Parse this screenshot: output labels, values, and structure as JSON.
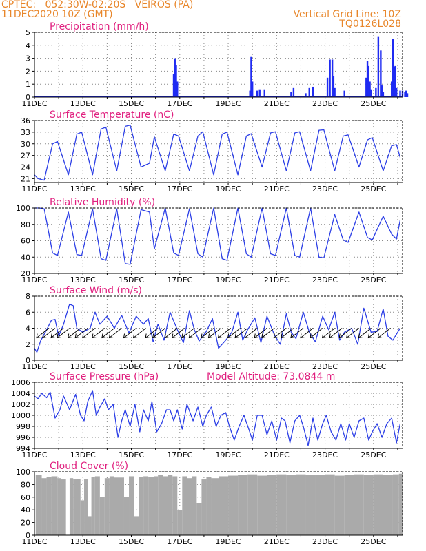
{
  "header": {
    "line1": "CPTEC:   052:30W-02:20S   VEIROS (PA)",
    "line2": "11DEC2020 10Z (GMT)",
    "grid_note": "Vertical Grid Line: 10Z",
    "model_code": "TQ0126L028",
    "color": "#e8862a"
  },
  "colors": {
    "title": "#e0207f",
    "line": "#2b3ee6",
    "bar": "#1f2bf2",
    "cloud": "#aaaaaa",
    "arrow": "#000000"
  },
  "x_labels": [
    "11DEC",
    "13DEC",
    "15DEC",
    "17DEC",
    "19DEC",
    "21DEC",
    "23DEC",
    "25DEC"
  ],
  "chart_data": [
    {
      "type": "bar",
      "title": "Precipitation (mm/h)",
      "ylim": [
        0,
        5
      ],
      "yticks": [
        "0",
        "1",
        "2",
        "3",
        "4",
        "5"
      ],
      "x_days": [
        5.75,
        5.8,
        5.85,
        5.9,
        8.9,
        8.95,
        9.0,
        9.2,
        9.3,
        9.5,
        10.6,
        10.7,
        11.2,
        11.35,
        11.5,
        12.1,
        12.2,
        12.3,
        12.35,
        12.4,
        12.8,
        13.7,
        13.75,
        13.8,
        13.85,
        13.9,
        14.1,
        14.2,
        14.3,
        14.35,
        14.4,
        14.75,
        14.8,
        14.85,
        14.9,
        14.95,
        15.1,
        15.2,
        15.3,
        15.35,
        15.4
      ],
      "values": [
        1.8,
        3.0,
        2.5,
        1.2,
        0.5,
        3.1,
        1.2,
        0.5,
        0.6,
        0.6,
        0.4,
        0.7,
        0.3,
        0.7,
        0.8,
        1.5,
        2.9,
        2.9,
        1.6,
        0.7,
        0.5,
        1.5,
        2.8,
        2.4,
        1.2,
        0.6,
        0.7,
        4.7,
        3.6,
        0.9,
        0.4,
        1.2,
        4.5,
        2.3,
        2.4,
        0.7,
        0.5,
        0.5,
        0.4,
        0.5,
        0.3
      ]
    },
    {
      "type": "line",
      "title": "Surface Temperature (nC)",
      "ylim": [
        20,
        36
      ],
      "yticks": [
        "21",
        "24",
        "27",
        "30",
        "33",
        "36"
      ],
      "series": [
        {
          "x": [
            0,
            0.15,
            0.4,
            0.75,
            0.95,
            1.4,
            1.75,
            1.95,
            2.4,
            2.75,
            2.95,
            3.4,
            3.75,
            3.95,
            4.4,
            4.75,
            4.95,
            5.4,
            5.75,
            5.95,
            6.4,
            6.75,
            6.95,
            7.4,
            7.75,
            7.95,
            8.4,
            8.75,
            8.95,
            9.4,
            9.75,
            9.95,
            10.4,
            10.75,
            10.95,
            11.4,
            11.75,
            11.95,
            12.4,
            12.75,
            12.95,
            13.4,
            13.75,
            13.95,
            14.4,
            14.75,
            14.95,
            15.1
          ],
          "y": [
            22,
            21,
            20.6,
            30,
            30.6,
            22,
            32.5,
            33,
            22,
            33.8,
            34.3,
            23,
            34.5,
            34.8,
            24,
            25,
            31.8,
            23,
            32.5,
            32,
            23,
            32,
            33.1,
            22,
            32.5,
            33,
            22,
            32,
            32.6,
            24,
            32.8,
            33.1,
            23,
            32.8,
            33.1,
            23,
            33.5,
            33.6,
            23,
            32,
            32.3,
            24,
            31,
            31.6,
            23,
            29.5,
            29.8,
            26.5
          ]
        }
      ]
    },
    {
      "type": "line",
      "title": "Relative Humidity (%)",
      "ylim": [
        20,
        100
      ],
      "yticks": [
        "20",
        "40",
        "60",
        "80",
        "100"
      ],
      "series": [
        {
          "x": [
            0,
            0.2,
            0.4,
            0.75,
            0.95,
            1.4,
            1.75,
            1.95,
            2.4,
            2.75,
            2.95,
            3.4,
            3.75,
            3.95,
            4.4,
            4.75,
            4.95,
            5.4,
            5.75,
            5.95,
            6.4,
            6.75,
            6.95,
            7.4,
            7.75,
            7.95,
            8.4,
            8.75,
            8.95,
            9.4,
            9.75,
            9.95,
            10.4,
            10.75,
            10.95,
            11.4,
            11.75,
            11.95,
            12.4,
            12.75,
            12.95,
            13.4,
            13.75,
            13.95,
            14.4,
            14.75,
            14.95,
            15.1
          ],
          "y": [
            100,
            100,
            99,
            45,
            42,
            95,
            43,
            42,
            99,
            38,
            36,
            99,
            32,
            31,
            98,
            95,
            50,
            100,
            45,
            42,
            99,
            44,
            40,
            100,
            38,
            36,
            100,
            44,
            40,
            100,
            44,
            42,
            100,
            42,
            40,
            100,
            40,
            39,
            92,
            61,
            58,
            95,
            64,
            61,
            90,
            68,
            62,
            85
          ]
        }
      ]
    },
    {
      "type": "line",
      "title": "Surface Wind (m/s)",
      "ylim": [
        0,
        8
      ],
      "yticks": [
        "0",
        "2",
        "4",
        "6",
        "8"
      ],
      "series": [
        {
          "x": [
            0,
            0.1,
            0.25,
            0.45,
            0.7,
            0.85,
            1.0,
            1.2,
            1.45,
            1.6,
            1.75,
            2.0,
            2.3,
            2.5,
            2.7,
            3.0,
            3.3,
            3.6,
            3.9,
            4.2,
            4.5,
            4.7,
            4.9,
            5.1,
            5.35,
            5.6,
            5.9,
            6.15,
            6.4,
            6.6,
            6.8,
            7.1,
            7.35,
            7.6,
            7.9,
            8.15,
            8.4,
            8.6,
            8.8,
            9.1,
            9.35,
            9.6,
            9.9,
            10.15,
            10.4,
            10.6,
            10.8,
            11.1,
            11.35,
            11.6,
            11.9,
            12.15,
            12.4,
            12.6,
            12.8,
            13.1,
            13.35,
            13.6,
            13.9,
            14.15,
            14.4,
            14.6,
            14.8,
            15.1
          ],
          "y": [
            1.5,
            1.0,
            2.4,
            3.5,
            5.0,
            5.1,
            3.0,
            4.5,
            7.0,
            6.8,
            4.0,
            3.5,
            4.0,
            6.0,
            4.5,
            5.5,
            4.0,
            5.6,
            3.4,
            5.5,
            4.5,
            5.2,
            2.3,
            4.5,
            2.5,
            6.0,
            3.8,
            2.2,
            6.2,
            3.8,
            2.4,
            3.6,
            5.2,
            1.5,
            2.5,
            3.5,
            6.0,
            2.5,
            3.8,
            5.3,
            2.2,
            5.5,
            3.2,
            2.0,
            5.8,
            3.5,
            2.7,
            6.0,
            3.5,
            2.3,
            5.5,
            3.8,
            6.0,
            2.5,
            3.5,
            4.0,
            2.0,
            6.5,
            3.5,
            3.6,
            6.4,
            3.0,
            2.5,
            4.0
          ]
        }
      ],
      "arrow_days": [
        0.6,
        0.85,
        1.2,
        1.45,
        1.9,
        2.2,
        2.5,
        2.9,
        3.3,
        3.6,
        4.2,
        4.6,
        5.1,
        5.4,
        5.9,
        6.2,
        6.6,
        6.9,
        7.4,
        7.7,
        8.1,
        8.5,
        8.8,
        9.2,
        9.6,
        9.9,
        10.4,
        10.7,
        11.1,
        11.5,
        11.9,
        12.4,
        12.7,
        13.1,
        13.4,
        13.9,
        14.3,
        14.7
      ]
    },
    {
      "type": "line",
      "title": "Surface Pressure (hPa)",
      "annotation": "Model Altitude: 73.0844 m",
      "ylim": [
        994,
        1006
      ],
      "yticks": [
        "994",
        "996",
        "998",
        "1000",
        "1002",
        "1004",
        "1006"
      ],
      "series": [
        {
          "x": [
            0,
            0.15,
            0.3,
            0.5,
            0.65,
            0.85,
            1.05,
            1.2,
            1.45,
            1.7,
            1.9,
            2.05,
            2.2,
            2.4,
            2.55,
            2.7,
            2.9,
            3.05,
            3.25,
            3.45,
            3.6,
            3.75,
            3.95,
            4.15,
            4.35,
            4.5,
            4.7,
            4.85,
            5.05,
            5.25,
            5.45,
            5.6,
            5.75,
            5.9,
            6.1,
            6.3,
            6.55,
            6.75,
            6.95,
            7.1,
            7.3,
            7.5,
            7.7,
            7.9,
            8.05,
            8.25,
            8.45,
            8.65,
            8.85,
            9.0,
            9.2,
            9.4,
            9.6,
            9.8,
            10.0,
            10.2,
            10.35,
            10.55,
            10.75,
            10.95,
            11.1,
            11.3,
            11.5,
            11.7,
            11.9,
            12.05,
            12.25,
            12.45,
            12.65,
            12.85,
            13.0,
            13.2,
            13.4,
            13.6,
            13.8,
            13.95,
            14.15,
            14.35,
            14.55,
            14.75,
            14.95,
            15.1
          ],
          "y": [
            1003.5,
            1003.0,
            1004.0,
            1003.2,
            1004.2,
            999.5,
            1001.0,
            1003.5,
            1001.0,
            1003.8,
            1000.0,
            999.0,
            1002.5,
            1004.5,
            1000.0,
            1001.5,
            1003.0,
            1001.0,
            1002.0,
            996.0,
            999.0,
            1001.0,
            998.0,
            1002.0,
            997.0,
            1001.0,
            999.0,
            1002.5,
            997.0,
            998.5,
            1001.0,
            1001.0,
            999.0,
            1001.0,
            997.5,
            1002.0,
            999.0,
            1001.5,
            998.0,
            1000.0,
            1001.5,
            998.0,
            1000.0,
            1000.5,
            998.0,
            995.5,
            998.0,
            1000.0,
            997.5,
            995.5,
            1000.0,
            1000.0,
            996.5,
            999.0,
            995.5,
            999.5,
            999.0,
            995.0,
            999.0,
            1000.0,
            998.0,
            994.5,
            999.5,
            995.5,
            998.5,
            1000.0,
            997.0,
            995.5,
            998.5,
            995.5,
            998.5,
            996.0,
            999.0,
            999.5,
            995.5,
            997.0,
            998.5,
            996.0,
            998.5,
            999.5,
            995.0,
            998.5
          ]
        }
      ]
    },
    {
      "type": "area",
      "title": "Cloud Cover (%)",
      "ylim": [
        0,
        100
      ],
      "yticks": [
        "0",
        "20",
        "40",
        "60",
        "80",
        "100"
      ],
      "x_days": [
        0.05,
        0.3,
        0.5,
        0.7,
        0.95,
        1.1,
        1.3,
        1.45,
        1.6,
        1.75,
        1.9,
        2.05,
        2.2,
        2.35,
        2.5,
        2.7,
        2.9,
        3.1,
        3.3,
        3.5,
        3.7,
        3.9,
        4.1,
        4.3,
        4.5,
        4.7,
        4.95,
        5.1,
        5.3,
        5.5,
        5.7,
        5.9,
        6.1,
        6.3,
        6.5,
        6.7,
        6.9,
        7.1,
        7.3,
        7.6,
        8.0,
        8.4,
        8.8,
        9.2,
        9.6,
        10.0,
        10.4,
        10.8,
        11.2,
        11.6,
        12.0,
        12.4,
        12.8,
        13.2,
        13.6,
        14.0,
        14.4,
        14.8,
        15.05
      ],
      "values": [
        95,
        90,
        92,
        93,
        90,
        88,
        0,
        90,
        88,
        89,
        55,
        88,
        30,
        92,
        93,
        60,
        90,
        93,
        91,
        91,
        60,
        93,
        30,
        92,
        93,
        92,
        93,
        95,
        93,
        95,
        93,
        40,
        93,
        90,
        93,
        50,
        88,
        92,
        90,
        93,
        94,
        95,
        96,
        94,
        95,
        96,
        95,
        96,
        95,
        95,
        96,
        94,
        95,
        96,
        95,
        96,
        95,
        96,
        97
      ]
    }
  ]
}
